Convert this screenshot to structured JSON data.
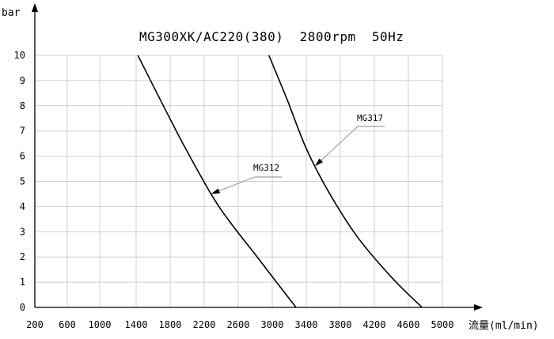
{
  "chart_data": {
    "type": "line",
    "title": "MG300XK/AC220(380)  2800rpm  50Hz",
    "ylabel": "bar",
    "xlabel": "流量(ml/min)",
    "xlim": [
      200,
      5000
    ],
    "ylim": [
      0,
      10
    ],
    "x_ticks": [
      200,
      600,
      1000,
      1400,
      1800,
      2200,
      2600,
      3000,
      3400,
      3800,
      4200,
      4600,
      5000
    ],
    "y_ticks": [
      0,
      1,
      2,
      3,
      4,
      5,
      6,
      7,
      8,
      9,
      10
    ],
    "grid": true,
    "series": [
      {
        "name": "MG312",
        "points": [
          [
            1420,
            10
          ],
          [
            1720,
            8
          ],
          [
            1950,
            6.5
          ],
          [
            2280,
            4.5
          ],
          [
            2500,
            3.4
          ],
          [
            2800,
            2.1
          ],
          [
            3050,
            1.0
          ],
          [
            3280,
            0
          ]
        ]
      },
      {
        "name": "MG317",
        "points": [
          [
            2960,
            10
          ],
          [
            3180,
            8.2
          ],
          [
            3400,
            6.3
          ],
          [
            3660,
            4.6
          ],
          [
            4000,
            2.8
          ],
          [
            4400,
            1.2
          ],
          [
            4760,
            0
          ]
        ]
      }
    ]
  }
}
